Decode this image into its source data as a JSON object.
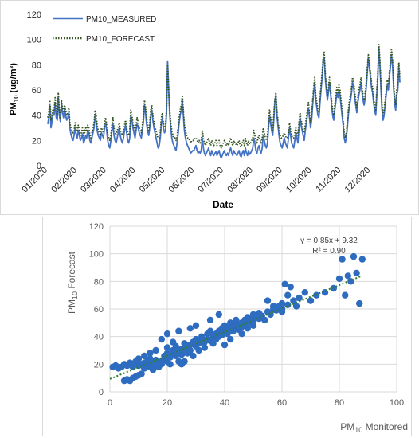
{
  "charts": [
    {
      "type": "line",
      "xlabel": "Date",
      "ylabel_main": "PM",
      "ylabel_sub": "10",
      "ylabel_unit": " (ug/m³)",
      "ylim": [
        0,
        120
      ],
      "yticks": [
        0,
        20,
        40,
        60,
        80,
        100,
        120
      ],
      "x_ticks": [
        "01/2020",
        "02/2020",
        "03/2020",
        "04/2020",
        "05/2020",
        "06/2020",
        "07/2020",
        "08/2020",
        "09/2020",
        "10/2020",
        "11/2020",
        "12/2020"
      ],
      "legend_position": "top-left",
      "series": [
        {
          "name": "PM10_MEASURED",
          "color": "#4472C4",
          "style": "solid",
          "values": [
            33,
            38,
            48,
            30,
            35,
            42,
            40,
            50,
            38,
            36,
            55,
            40,
            35,
            50,
            42,
            38,
            45,
            40,
            36,
            38,
            42,
            30,
            25,
            22,
            20,
            24,
            30,
            25,
            22,
            28,
            24,
            20,
            22,
            25,
            18,
            20,
            24,
            22,
            28,
            26,
            20,
            18,
            22,
            26,
            30,
            40,
            35,
            28,
            24,
            22,
            20,
            26,
            24,
            22,
            30,
            34,
            28,
            20,
            16,
            14,
            20,
            28,
            33,
            24,
            20,
            18,
            22,
            26,
            30,
            24,
            20,
            18,
            22,
            28,
            32,
            26,
            20,
            18,
            22,
            40,
            36,
            30,
            26,
            22,
            28,
            33,
            30,
            26,
            24,
            22,
            28,
            35,
            48,
            42,
            33,
            28,
            24,
            30,
            40,
            44,
            36,
            30,
            26,
            22,
            18,
            14,
            16,
            22,
            33,
            38,
            30,
            26,
            28,
            42,
            83,
            60,
            40,
            30,
            22,
            18,
            16,
            14,
            12,
            18,
            25,
            34,
            40,
            44,
            52,
            40,
            28,
            22,
            18,
            16,
            14,
            12,
            10,
            11,
            12,
            12,
            14,
            16,
            12,
            10,
            11,
            10,
            12,
            22,
            14,
            10,
            8,
            10,
            12,
            14,
            10,
            8,
            12,
            9,
            8,
            10,
            11,
            8,
            10,
            12,
            8,
            6,
            8,
            10,
            12,
            9,
            8,
            10,
            8,
            12,
            14,
            10,
            8,
            12,
            10,
            9,
            8,
            10,
            12,
            8,
            7,
            10,
            12,
            8,
            14,
            10,
            8,
            12,
            9,
            10,
            12,
            14,
            22,
            18,
            12,
            10,
            14,
            16,
            12,
            10,
            14,
            24,
            20,
            16,
            14,
            18,
            30,
            40,
            34,
            28,
            24,
            36,
            50,
            56,
            40,
            32,
            24,
            18,
            16,
            14,
            18,
            22,
            18,
            16,
            14,
            22,
            30,
            24,
            18,
            16,
            14,
            20,
            26,
            22,
            18,
            30,
            38,
            32,
            28,
            24,
            20,
            28,
            34,
            40,
            46,
            38,
            30,
            36,
            48,
            58,
            66,
            52,
            46,
            40,
            38,
            50,
            60,
            70,
            84,
            86,
            70,
            60,
            52,
            58,
            66,
            58,
            48,
            40,
            36,
            44,
            50,
            58,
            54,
            60,
            56,
            48,
            40,
            32,
            22,
            18,
            22,
            30,
            40,
            48,
            52,
            58,
            66,
            62,
            54,
            48,
            42,
            50,
            56,
            60,
            66,
            58,
            52,
            48,
            54,
            62,
            74,
            86,
            78,
            70,
            62,
            58,
            50,
            44,
            40,
            56,
            70,
            94,
            80,
            60,
            44,
            36,
            40,
            48,
            56,
            64,
            60,
            70,
            78,
            88,
            80,
            62,
            50,
            44,
            56,
            60,
            78,
            66
          ]
        },
        {
          "name": "PM10_FORECAST",
          "color": "#375623",
          "style": "dotted",
          "values": [
            38,
            42,
            52,
            36,
            40,
            46,
            44,
            54,
            42,
            40,
            58,
            44,
            38,
            52,
            46,
            42,
            48,
            44,
            40,
            42,
            46,
            34,
            30,
            28,
            26,
            28,
            34,
            30,
            28,
            32,
            28,
            24,
            26,
            30,
            24,
            26,
            30,
            28,
            32,
            30,
            24,
            22,
            26,
            30,
            34,
            44,
            40,
            32,
            28,
            26,
            24,
            30,
            28,
            26,
            34,
            38,
            32,
            26,
            22,
            20,
            24,
            32,
            38,
            30,
            26,
            24,
            28,
            30,
            34,
            28,
            26,
            24,
            28,
            32,
            36,
            30,
            26,
            24,
            28,
            44,
            40,
            34,
            30,
            28,
            32,
            38,
            34,
            30,
            28,
            26,
            32,
            40,
            52,
            46,
            38,
            32,
            28,
            34,
            44,
            48,
            40,
            34,
            30,
            28,
            24,
            22,
            22,
            26,
            38,
            42,
            34,
            30,
            32,
            46,
            80,
            64,
            44,
            34,
            28,
            24,
            22,
            22,
            20,
            24,
            30,
            38,
            44,
            48,
            56,
            44,
            32,
            28,
            24,
            22,
            22,
            20,
            18,
            20,
            20,
            20,
            22,
            22,
            20,
            18,
            20,
            18,
            20,
            28,
            22,
            18,
            16,
            18,
            20,
            22,
            18,
            16,
            20,
            18,
            16,
            18,
            20,
            16,
            18,
            20,
            16,
            14,
            16,
            18,
            20,
            18,
            16,
            18,
            16,
            20,
            22,
            18,
            16,
            20,
            18,
            17,
            16,
            18,
            20,
            16,
            15,
            18,
            20,
            16,
            22,
            18,
            16,
            20,
            17,
            18,
            20,
            22,
            28,
            24,
            20,
            18,
            22,
            24,
            20,
            18,
            22,
            30,
            26,
            22,
            20,
            24,
            34,
            44,
            38,
            32,
            28,
            40,
            52,
            58,
            44,
            36,
            28,
            24,
            22,
            22,
            24,
            26,
            24,
            22,
            22,
            26,
            34,
            28,
            24,
            22,
            22,
            26,
            30,
            26,
            24,
            34,
            42,
            36,
            32,
            28,
            26,
            32,
            38,
            44,
            50,
            42,
            34,
            40,
            52,
            62,
            70,
            56,
            50,
            44,
            42,
            54,
            64,
            74,
            86,
            90,
            74,
            64,
            56,
            62,
            70,
            62,
            52,
            44,
            40,
            48,
            54,
            62,
            58,
            64,
            60,
            52,
            44,
            36,
            26,
            22,
            26,
            34,
            44,
            52,
            56,
            62,
            70,
            66,
            58,
            52,
            46,
            54,
            60,
            64,
            70,
            62,
            56,
            52,
            58,
            66,
            78,
            88,
            82,
            74,
            66,
            62,
            54,
            48,
            44,
            60,
            74,
            96,
            84,
            64,
            48,
            40,
            44,
            52,
            60,
            68,
            64,
            74,
            82,
            92,
            84,
            66,
            54,
            48,
            60,
            64,
            82,
            70
          ]
        }
      ]
    },
    {
      "type": "scatter",
      "xlabel_main": "PM",
      "xlabel_sub": "10",
      "xlabel_rest": " Monitored",
      "ylabel_main": "PM",
      "ylabel_sub": "10",
      "ylabel_rest": " Forecast",
      "xlim": [
        0,
        100
      ],
      "ylim": [
        0,
        120
      ],
      "xticks": [
        0,
        20,
        40,
        60,
        80,
        100
      ],
      "yticks": [
        0,
        20,
        40,
        60,
        80,
        100,
        120
      ],
      "grid": true,
      "point_color": "#2E6CC0",
      "trend_color": "#2E7D32",
      "equation": "y = 0.85x + 9.32",
      "r_squared": "R² = 0.90",
      "trendline": {
        "slope": 0.85,
        "intercept": 9.32
      },
      "points": [
        [
          1,
          18
        ],
        [
          2,
          19
        ],
        [
          3,
          17
        ],
        [
          4,
          18
        ],
        [
          5,
          20
        ],
        [
          5,
          8
        ],
        [
          6,
          9
        ],
        [
          6,
          19
        ],
        [
          7,
          8
        ],
        [
          7,
          21
        ],
        [
          8,
          10
        ],
        [
          8,
          18
        ],
        [
          9,
          11
        ],
        [
          9,
          22
        ],
        [
          10,
          12
        ],
        [
          10,
          19
        ],
        [
          11,
          20
        ],
        [
          11,
          13
        ],
        [
          12,
          21
        ],
        [
          12,
          17
        ],
        [
          13,
          19
        ],
        [
          13,
          22
        ],
        [
          14,
          24
        ],
        [
          14,
          18
        ],
        [
          15,
          20
        ],
        [
          15,
          16
        ],
        [
          16,
          19
        ],
        [
          16,
          23
        ],
        [
          17,
          21
        ],
        [
          17,
          18
        ],
        [
          18,
          22
        ],
        [
          18,
          20
        ],
        [
          19,
          24
        ],
        [
          19,
          26
        ],
        [
          20,
          22
        ],
        [
          20,
          28
        ],
        [
          20,
          32
        ],
        [
          21,
          25
        ],
        [
          21,
          20
        ],
        [
          22,
          27
        ],
        [
          22,
          30
        ],
        [
          23,
          26
        ],
        [
          23,
          33
        ],
        [
          24,
          29
        ],
        [
          24,
          22
        ],
        [
          25,
          31
        ],
        [
          25,
          27
        ],
        [
          26,
          30
        ],
        [
          26,
          35
        ],
        [
          27,
          28
        ],
        [
          27,
          32
        ],
        [
          28,
          34
        ],
        [
          28,
          30
        ],
        [
          29,
          36
        ],
        [
          29,
          26
        ],
        [
          30,
          33
        ],
        [
          30,
          38
        ],
        [
          31,
          35
        ],
        [
          31,
          30
        ],
        [
          32,
          37
        ],
        [
          32,
          40
        ],
        [
          33,
          36
        ],
        [
          33,
          32
        ],
        [
          34,
          38
        ],
        [
          34,
          42
        ],
        [
          35,
          37
        ],
        [
          35,
          44
        ],
        [
          36,
          40
        ],
        [
          36,
          35
        ],
        [
          37,
          42
        ],
        [
          37,
          38
        ],
        [
          38,
          44
        ],
        [
          38,
          40
        ],
        [
          39,
          46
        ],
        [
          39,
          41
        ],
        [
          40,
          43
        ],
        [
          40,
          48
        ],
        [
          41,
          45
        ],
        [
          41,
          42
        ],
        [
          42,
          47
        ],
        [
          42,
          50
        ],
        [
          43,
          46
        ],
        [
          43,
          44
        ],
        [
          44,
          49
        ],
        [
          44,
          52
        ],
        [
          45,
          48
        ],
        [
          45,
          45
        ],
        [
          46,
          50
        ],
        [
          46,
          47
        ],
        [
          47,
          52
        ],
        [
          47,
          49
        ],
        [
          48,
          51
        ],
        [
          48,
          54
        ],
        [
          49,
          50
        ],
        [
          49,
          53
        ],
        [
          50,
          52
        ],
        [
          50,
          56
        ],
        [
          51,
          54
        ],
        [
          52,
          53
        ],
        [
          52,
          57
        ],
        [
          53,
          55
        ],
        [
          54,
          52
        ],
        [
          55,
          58
        ],
        [
          56,
          56
        ],
        [
          57,
          60
        ],
        [
          58,
          59
        ],
        [
          59,
          62
        ],
        [
          60,
          64
        ],
        [
          60,
          58
        ],
        [
          61,
          78
        ],
        [
          62,
          70
        ],
        [
          63,
          76
        ],
        [
          64,
          66
        ],
        [
          65,
          62
        ],
        [
          66,
          68
        ],
        [
          68,
          72
        ],
        [
          70,
          66
        ],
        [
          72,
          70
        ],
        [
          75,
          72
        ],
        [
          78,
          75
        ],
        [
          80,
          82
        ],
        [
          81,
          96
        ],
        [
          82,
          70
        ],
        [
          83,
          84
        ],
        [
          84,
          80
        ],
        [
          85,
          98
        ],
        [
          86,
          86
        ],
        [
          87,
          64
        ],
        [
          88,
          96
        ],
        [
          18,
          38
        ],
        [
          20,
          42
        ],
        [
          24,
          44
        ],
        [
          16,
          30
        ],
        [
          14,
          28
        ],
        [
          30,
          48
        ],
        [
          35,
          52
        ],
        [
          38,
          56
        ],
        [
          28,
          46
        ],
        [
          22,
          36
        ],
        [
          10,
          24
        ],
        [
          12,
          26
        ],
        [
          40,
          34
        ],
        [
          42,
          38
        ],
        [
          46,
          42
        ],
        [
          48,
          46
        ],
        [
          50,
          48
        ],
        [
          26,
          22
        ],
        [
          25,
          20
        ],
        [
          55,
          66
        ],
        [
          57,
          62
        ],
        [
          60,
          60
        ],
        [
          62,
          63
        ]
      ]
    }
  ]
}
